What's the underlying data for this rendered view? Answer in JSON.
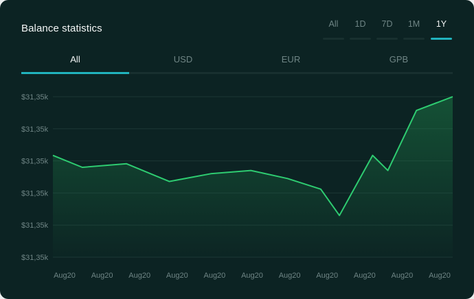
{
  "title": "Balance statistics",
  "ranges": [
    {
      "label": "All",
      "active": false
    },
    {
      "label": "1D",
      "active": false
    },
    {
      "label": "7D",
      "active": false
    },
    {
      "label": "1M",
      "active": false
    },
    {
      "label": "1Y",
      "active": true
    }
  ],
  "tabs": [
    {
      "label": "All",
      "active": true
    },
    {
      "label": "USD",
      "active": false
    },
    {
      "label": "EUR",
      "active": false
    },
    {
      "label": "GPB",
      "active": false
    }
  ],
  "colors": {
    "accent": "#21b3bd",
    "line": "#2ecc71",
    "background": "#0c2323"
  },
  "chart_data": {
    "type": "area",
    "x": [
      "Aug20",
      "Aug20",
      "Aug20",
      "Aug20",
      "Aug20",
      "Aug20",
      "Aug20",
      "Aug20",
      "Aug20",
      "Aug20",
      "Aug20"
    ],
    "y_tick_labels": [
      "$31,35k",
      "$31,35k",
      "$31,35k",
      "$31,35k",
      "$31,35k",
      "$31,35k"
    ],
    "ylim": [
      0,
      5
    ],
    "grid": true,
    "points": [
      {
        "x": 0.0,
        "y": 3.17
      },
      {
        "x": 0.77,
        "y": 2.8
      },
      {
        "x": 1.93,
        "y": 2.91
      },
      {
        "x": 3.05,
        "y": 2.36
      },
      {
        "x": 4.14,
        "y": 2.6
      },
      {
        "x": 5.19,
        "y": 2.7
      },
      {
        "x": 6.15,
        "y": 2.45
      },
      {
        "x": 7.02,
        "y": 2.12
      },
      {
        "x": 7.51,
        "y": 1.3
      },
      {
        "x": 8.38,
        "y": 3.17
      },
      {
        "x": 8.78,
        "y": 2.7
      },
      {
        "x": 9.53,
        "y": 4.57
      },
      {
        "x": 10.48,
        "y": 5.0
      }
    ]
  }
}
